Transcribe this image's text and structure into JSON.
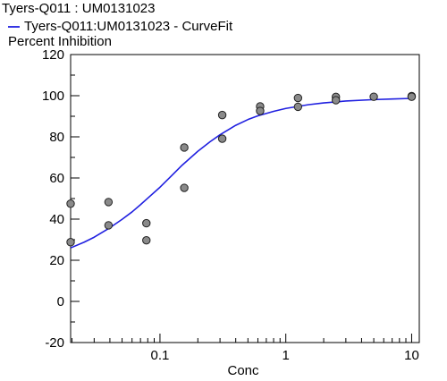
{
  "chart_data": {
    "type": "scatter",
    "title": "Tyers-Q011 : UM0131023",
    "legend": {
      "position": "top-left",
      "entries": [
        {
          "label": "Tyers-Q011:UM0131023 - CurveFit",
          "color": "#2020e0"
        }
      ]
    },
    "ylabel": "Percent Inhibition",
    "xlabel": "Conc",
    "x_scale": "log",
    "xlim": [
      0.0195,
      11.5
    ],
    "ylim": [
      -20,
      120
    ],
    "x_ticks": [
      0.1,
      1,
      10
    ],
    "x_tick_labels": [
      "0.1",
      "1",
      "10"
    ],
    "y_ticks": [
      -20,
      0,
      20,
      40,
      60,
      80,
      100,
      120
    ],
    "y_tick_labels": [
      "-20",
      "0",
      "20",
      "40",
      "60",
      "80",
      "100",
      "120"
    ],
    "grid": false,
    "series": [
      {
        "type": "scatter",
        "marker_color": "#8a8a8a",
        "points": [
          [
            0.0195,
            47.5
          ],
          [
            0.0195,
            28.8
          ],
          [
            0.039,
            48.3
          ],
          [
            0.039,
            37.0
          ],
          [
            0.078,
            38.0
          ],
          [
            0.078,
            29.7
          ],
          [
            0.156,
            74.8
          ],
          [
            0.156,
            55.2
          ],
          [
            0.3125,
            90.6
          ],
          [
            0.3125,
            79.1
          ],
          [
            0.625,
            94.8
          ],
          [
            0.625,
            92.6
          ],
          [
            1.25,
            98.9
          ],
          [
            1.25,
            94.6
          ],
          [
            2.5,
            99.4
          ],
          [
            2.5,
            97.8
          ],
          [
            5,
            99.5
          ],
          [
            10,
            99.8
          ],
          [
            10,
            99.5
          ]
        ]
      },
      {
        "name": "Tyers-Q011:UM0131023 - CurveFit",
        "type": "line",
        "color": "#2020e0",
        "points": [
          [
            0.0195,
            26.0
          ],
          [
            0.025,
            28.8
          ],
          [
            0.03,
            31.2
          ],
          [
            0.04,
            35.8
          ],
          [
            0.05,
            39.9
          ],
          [
            0.06,
            43.5
          ],
          [
            0.07,
            47.0
          ],
          [
            0.08,
            50.2
          ],
          [
            0.1,
            55.5
          ],
          [
            0.12,
            60.3
          ],
          [
            0.15,
            66.2
          ],
          [
            0.2,
            73.0
          ],
          [
            0.25,
            77.6
          ],
          [
            0.3,
            81.0
          ],
          [
            0.4,
            85.6
          ],
          [
            0.5,
            88.4
          ],
          [
            0.6,
            90.2
          ],
          [
            0.8,
            92.4
          ],
          [
            1.0,
            93.8
          ],
          [
            1.5,
            95.6
          ],
          [
            2.0,
            96.5
          ],
          [
            3.0,
            97.4
          ],
          [
            5.0,
            98.1
          ],
          [
            7.0,
            98.4
          ],
          [
            10.0,
            98.7
          ]
        ]
      }
    ]
  }
}
